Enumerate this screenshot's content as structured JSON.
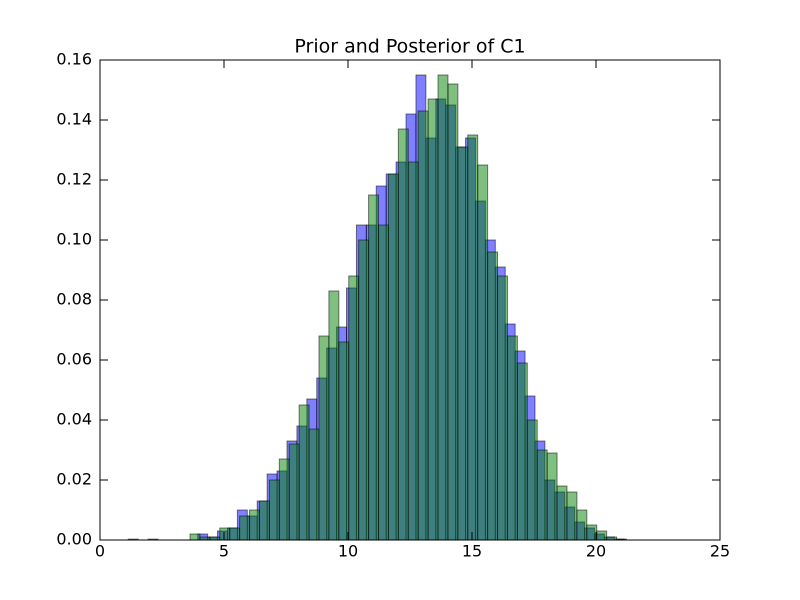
{
  "chart_data": {
    "type": "histogram",
    "title": "Prior and Posterior of C1",
    "xlim": [
      0,
      25
    ],
    "ylim": [
      0,
      0.16
    ],
    "xticks": [
      0,
      5,
      10,
      15,
      20,
      25
    ],
    "yticks": [
      {
        "value": 0,
        "label": "0.00"
      },
      {
        "value": 0.02,
        "label": "0.02"
      },
      {
        "value": 0.04,
        "label": "0.04"
      },
      {
        "value": 0.06,
        "label": "0.06"
      },
      {
        "value": 0.08,
        "label": "0.08"
      },
      {
        "value": 0.1,
        "label": "0.10"
      },
      {
        "value": 0.12,
        "label": "0.12"
      },
      {
        "value": 0.14,
        "label": "0.14"
      },
      {
        "value": 0.16,
        "label": "0.16"
      }
    ],
    "opacity": 0.5,
    "series": [
      {
        "color": "#0000ff",
        "bins": [
          1.14,
          1.54,
          1.94,
          2.34,
          2.74,
          3.14,
          3.54,
          3.94,
          4.34,
          4.74,
          5.14,
          5.54,
          5.94,
          6.34,
          6.74,
          7.14,
          7.54,
          7.94,
          8.34,
          8.74,
          9.14,
          9.54,
          9.94,
          10.34,
          10.74,
          11.14,
          11.54,
          11.94,
          12.34,
          12.74,
          13.14,
          13.54,
          13.94,
          14.34,
          14.74,
          15.14,
          15.54,
          15.94,
          16.34,
          16.74,
          17.14,
          17.54,
          17.94,
          18.34,
          18.74,
          19.14,
          19.54,
          19.94,
          20.34,
          20.74,
          21.14
        ],
        "values": [
          0.0003,
          0,
          0.0003,
          0,
          0,
          0,
          0,
          0.002,
          0.001,
          0.003,
          0.004,
          0.01,
          0.008,
          0.013,
          0.022,
          0.023,
          0.033,
          0.038,
          0.047,
          0.054,
          0.064,
          0.071,
          0.084,
          0.105,
          0.105,
          0.118,
          0.122,
          0.126,
          0.142,
          0.155,
          0.134,
          0.147,
          0.145,
          0.131,
          0.134,
          0.113,
          0.1,
          0.091,
          0.072,
          0.063,
          0.048,
          0.033,
          0.02,
          0.016,
          0.011,
          0.006,
          0.004,
          0.002,
          0.001,
          0.0003
        ]
      },
      {
        "color": "#008000",
        "bins": [
          1.23,
          1.63,
          2.03,
          2.43,
          2.83,
          3.23,
          3.63,
          4.03,
          4.43,
          4.83,
          5.23,
          5.63,
          6.03,
          6.43,
          6.83,
          7.23,
          7.63,
          8.03,
          8.43,
          8.83,
          9.23,
          9.63,
          10.03,
          10.43,
          10.83,
          11.23,
          11.63,
          12.03,
          12.43,
          12.83,
          13.23,
          13.63,
          14.03,
          14.43,
          14.83,
          15.23,
          15.63,
          16.03,
          16.43,
          16.83,
          17.23,
          17.63,
          18.03,
          18.43,
          18.83,
          19.23,
          19.63,
          20.03,
          20.43,
          20.83,
          21.23
        ],
        "values": [
          0,
          0,
          0,
          0,
          0,
          0,
          0.002,
          0.001,
          0.001,
          0.004,
          0.004,
          0.008,
          0.01,
          0.013,
          0.02,
          0.027,
          0.032,
          0.045,
          0.037,
          0.068,
          0.083,
          0.066,
          0.088,
          0.1,
          0.115,
          0.105,
          0.122,
          0.137,
          0.126,
          0.143,
          0.147,
          0.155,
          0.152,
          0.131,
          0.135,
          0.125,
          0.096,
          0.088,
          0.068,
          0.059,
          0.04,
          0.03,
          0.029,
          0.018,
          0.016,
          0.01,
          0.005,
          0.003,
          0.001,
          0.0003
        ]
      }
    ]
  }
}
